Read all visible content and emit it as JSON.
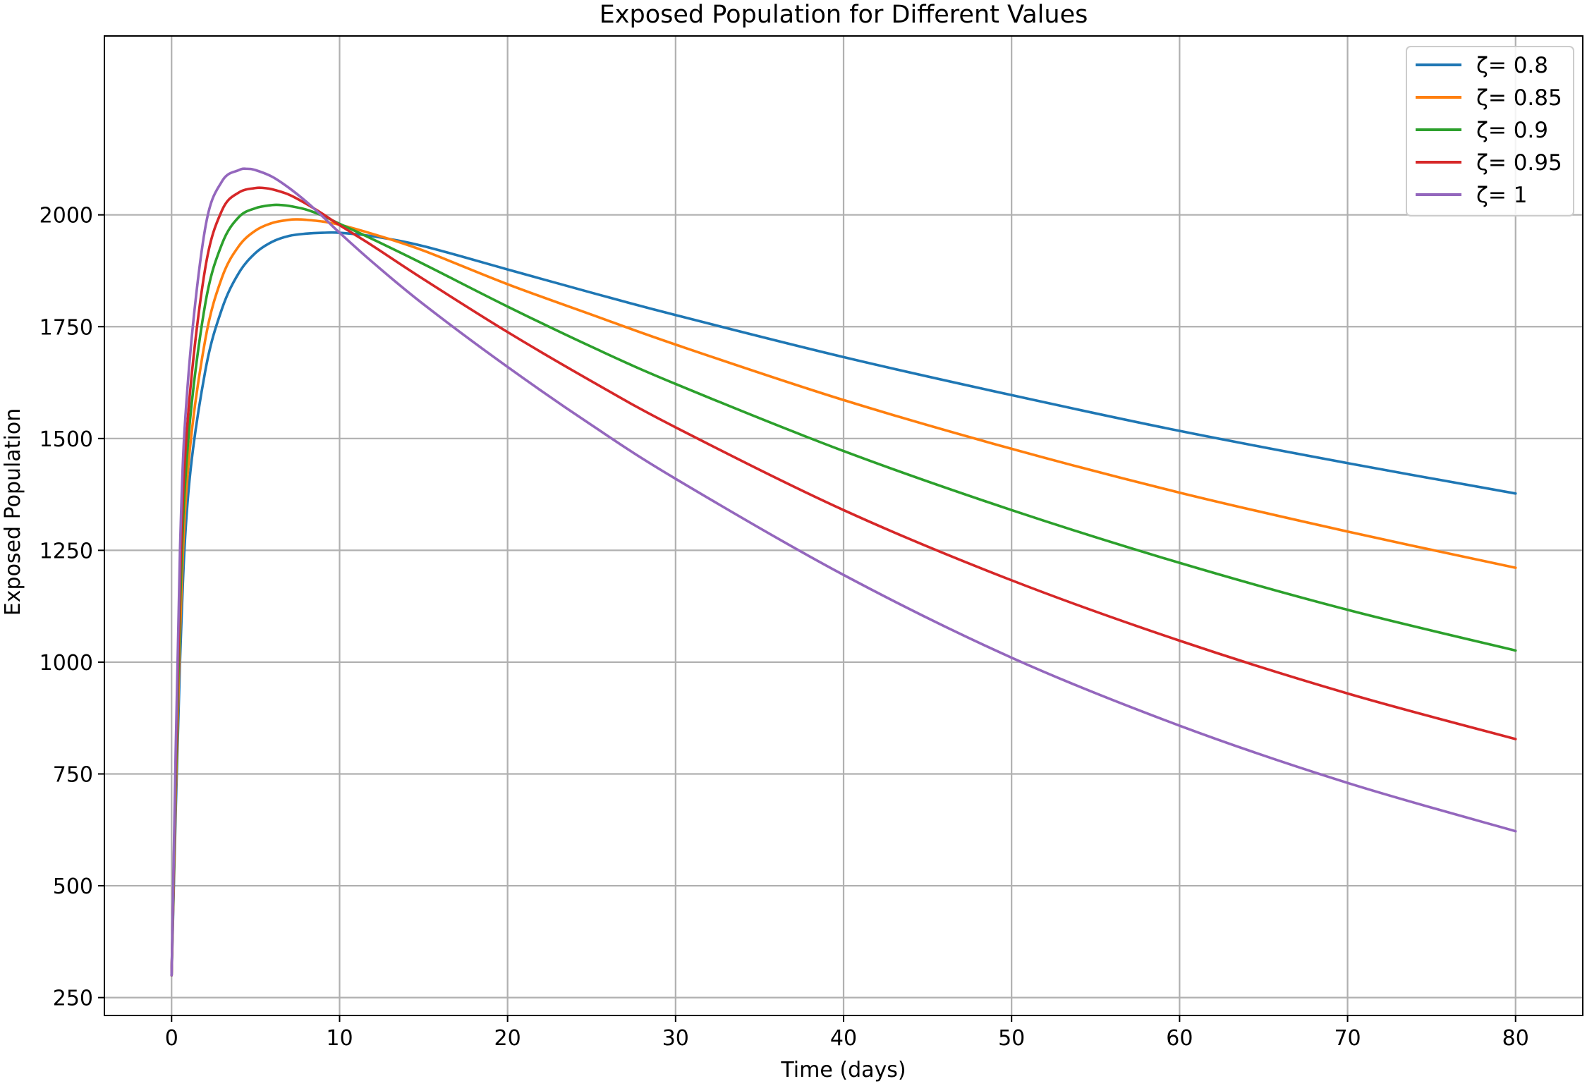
{
  "chart_data": {
    "type": "line",
    "title": "Exposed Population for Different Values",
    "xlabel": "Time (days)",
    "ylabel": "Exposed Population",
    "xlim": [
      -4,
      84
    ],
    "ylim": [
      210,
      2400
    ],
    "xticks": [
      0,
      10,
      20,
      30,
      40,
      50,
      60,
      70,
      80
    ],
    "yticks": [
      250,
      500,
      750,
      1000,
      1250,
      1500,
      1750,
      2000
    ],
    "grid": true,
    "legend_position": "top-right",
    "series": [
      {
        "name": "ζ= 0.8",
        "color": "#1f77b4",
        "x": [
          0,
          0.5,
          1,
          2,
          3,
          4,
          5,
          6,
          7,
          8,
          9,
          10,
          12,
          15,
          20,
          25,
          30,
          40,
          50,
          60,
          70,
          80
        ],
        "y": [
          300,
          1000,
          1380,
          1650,
          1790,
          1870,
          1915,
          1940,
          1953,
          1958,
          1960,
          1960,
          1952,
          1930,
          1878,
          1826,
          1776,
          1682,
          1597,
          1517,
          1445,
          1377
        ]
      },
      {
        "name": "ζ= 0.85",
        "color": "#ff7f0e",
        "x": [
          0,
          0.5,
          1,
          2,
          3,
          4,
          5,
          6,
          7,
          7.5,
          8,
          9,
          10,
          12,
          15,
          20,
          25,
          30,
          40,
          50,
          60,
          70,
          80
        ],
        "y": [
          300,
          1060,
          1440,
          1720,
          1860,
          1930,
          1965,
          1982,
          1989,
          1990,
          1989,
          1985,
          1978,
          1957,
          1920,
          1845,
          1777,
          1710,
          1586,
          1477,
          1379,
          1292,
          1211
        ]
      },
      {
        "name": "ζ= 0.9",
        "color": "#2ca02c",
        "x": [
          0,
          0.5,
          1,
          2,
          3,
          4,
          5,
          6,
          6.5,
          7,
          8,
          9,
          10,
          12,
          15,
          20,
          25,
          30,
          40,
          50,
          60,
          70,
          80
        ],
        "y": [
          300,
          1120,
          1500,
          1800,
          1935,
          1995,
          2015,
          2022,
          2022,
          2020,
          2012,
          1998,
          1980,
          1945,
          1890,
          1795,
          1705,
          1622,
          1472,
          1340,
          1222,
          1117,
          1026
        ]
      },
      {
        "name": "ζ= 0.95",
        "color": "#d62728",
        "x": [
          0,
          0.5,
          1,
          2,
          3,
          4,
          5,
          5.5,
          6,
          7,
          8,
          9,
          10,
          12,
          15,
          20,
          25,
          30,
          40,
          50,
          60,
          70,
          80
        ],
        "y": [
          300,
          1180,
          1560,
          1880,
          2010,
          2050,
          2060,
          2060,
          2057,
          2045,
          2025,
          2002,
          1977,
          1930,
          1856,
          1738,
          1628,
          1525,
          1340,
          1183,
          1048,
          930,
          828
        ]
      },
      {
        "name": "ζ= 1",
        "color": "#9467bd",
        "x": [
          0,
          0.5,
          1,
          2,
          3,
          4,
          4.5,
          5,
          6,
          7,
          8,
          9,
          10,
          12,
          15,
          20,
          25,
          30,
          40,
          50,
          60,
          70,
          80
        ],
        "y": [
          300,
          1250,
          1640,
          1970,
          2075,
          2100,
          2103,
          2100,
          2085,
          2060,
          2030,
          1996,
          1960,
          1893,
          1800,
          1660,
          1530,
          1410,
          1195,
          1010,
          858,
          730,
          622
        ]
      }
    ]
  }
}
